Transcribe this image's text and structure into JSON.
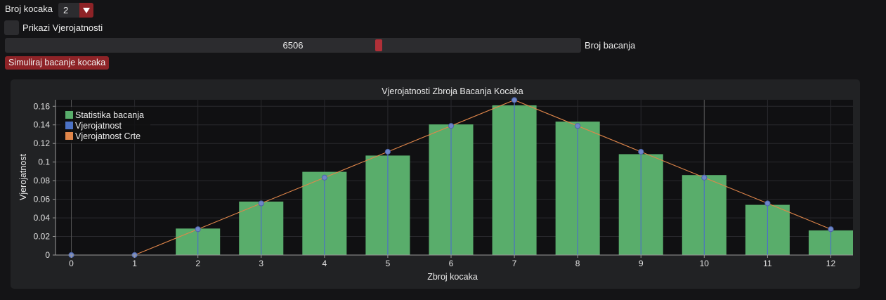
{
  "controls": {
    "dice_label": "Broj kocaka",
    "dice_value": "2",
    "show_prob_label": "Prikazi Vjerojatnosti",
    "slider_value": "6506",
    "slider_label": "Broj bacanja",
    "simulate_label": "Simuliraj bacanje kocaka"
  },
  "colors": {
    "bars": "#59ad6b",
    "stems": "#4c72c4",
    "line": "#e0864a",
    "accent": "#8e2327",
    "plot_bg": "#101012"
  },
  "chart_data": {
    "type": "bar",
    "title": "Vjerojatnosti Zbroja Bacanja Kocaka",
    "xlabel": "Zbroj kocaka",
    "ylabel": "Vjerojatnost",
    "xlim": [
      -0.25,
      12.35
    ],
    "ylim": [
      0,
      0.167
    ],
    "x_ticks": [
      "0",
      "1",
      "2",
      "3",
      "4",
      "5",
      "6",
      "7",
      "8",
      "9",
      "10",
      "11",
      "12"
    ],
    "y_ticks": [
      "0",
      "0.02",
      "0.04",
      "0.06",
      "0.08",
      "0.1",
      "0.12",
      "0.14",
      "0.16"
    ],
    "grid": true,
    "legend_position": "top-left",
    "series": [
      {
        "name": "Statistika bacanja",
        "type": "bar",
        "x": [
          2,
          3,
          4,
          5,
          6,
          7,
          8,
          9,
          10,
          11,
          12
        ],
        "values": [
          0.0285,
          0.0575,
          0.0895,
          0.107,
          0.1405,
          0.161,
          0.1435,
          0.1085,
          0.086,
          0.054,
          0.0265
        ]
      },
      {
        "name": "Vjerojatnost",
        "type": "stem",
        "x": [
          0,
          1,
          2,
          3,
          4,
          5,
          6,
          7,
          8,
          9,
          10,
          11,
          12
        ],
        "values": [
          0,
          0,
          0.0278,
          0.0556,
          0.0833,
          0.1111,
          0.1389,
          0.1667,
          0.1389,
          0.1111,
          0.0833,
          0.0556,
          0.0278
        ]
      },
      {
        "name": "Vjerojatnost Crte",
        "type": "line",
        "x": [
          1,
          2,
          3,
          4,
          5,
          6,
          7,
          8,
          9,
          10,
          11,
          12
        ],
        "values": [
          0,
          0.0278,
          0.0556,
          0.0833,
          0.1111,
          0.1389,
          0.1667,
          0.1389,
          0.1111,
          0.0833,
          0.0556,
          0.0278
        ]
      }
    ]
  }
}
